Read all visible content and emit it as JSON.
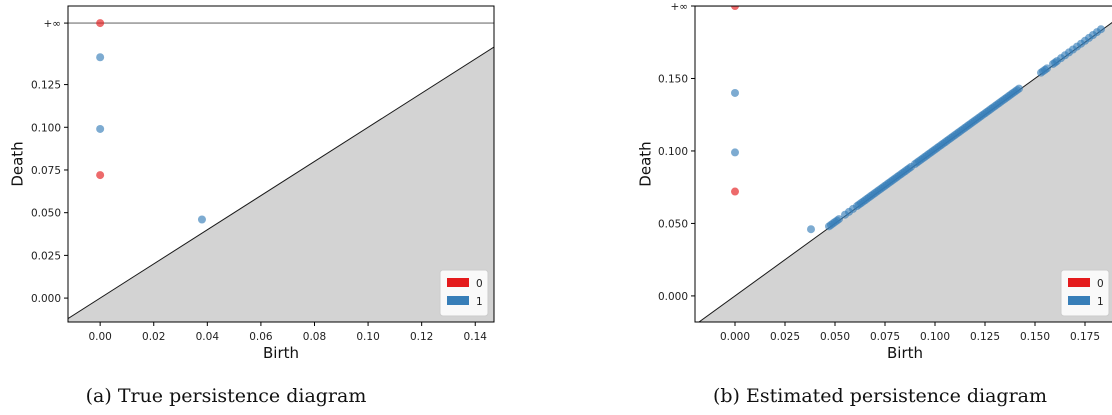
{
  "chart_data": [
    {
      "id": "a",
      "type": "scatter",
      "title": "",
      "caption": "(a) True persistence diagram",
      "xlabel": "Birth",
      "ylabel": "Death",
      "xlim": [
        -0.012,
        0.147
      ],
      "ylim": [
        -0.014,
        0.171
      ],
      "infinity_level": 0.161,
      "infinity_label": "+∞",
      "xticks": [
        {
          "value": 0.0,
          "label": "0.00"
        },
        {
          "value": 0.02,
          "label": "0.02"
        },
        {
          "value": 0.04,
          "label": "0.04"
        },
        {
          "value": 0.06,
          "label": "0.06"
        },
        {
          "value": 0.08,
          "label": "0.08"
        },
        {
          "value": 0.1,
          "label": "0.10"
        },
        {
          "value": 0.12,
          "label": "0.12"
        },
        {
          "value": 0.14,
          "label": "0.14"
        }
      ],
      "yticks": [
        {
          "value": 0.0,
          "label": "0.000"
        },
        {
          "value": 0.025,
          "label": "0.025"
        },
        {
          "value": 0.05,
          "label": "0.050"
        },
        {
          "value": 0.075,
          "label": "0.075"
        },
        {
          "value": 0.1,
          "label": "0.100"
        },
        {
          "value": 0.125,
          "label": "0.125"
        }
      ],
      "grid": false,
      "legend_position": "bottom-right",
      "series": [
        {
          "name": "0",
          "color": "#e41a1c",
          "points": [
            [
              0.0,
              0.072
            ],
            [
              0.0,
              "+∞"
            ]
          ]
        },
        {
          "name": "1",
          "color": "#377eb8",
          "points": [
            [
              0.0,
              0.099
            ],
            [
              0.0,
              0.141
            ],
            [
              0.038,
              0.046
            ]
          ]
        }
      ]
    },
    {
      "id": "b",
      "type": "scatter",
      "title": "",
      "caption": "(b) Estimated persistence diagram",
      "xlabel": "Birth",
      "ylabel": "Death",
      "xlim": [
        -0.02,
        0.19
      ],
      "ylim": [
        -0.018,
        0.2
      ],
      "infinity_level": 0.2,
      "infinity_label": "+∞",
      "xticks": [
        {
          "value": 0.0,
          "label": "0.000"
        },
        {
          "value": 0.025,
          "label": "0.025"
        },
        {
          "value": 0.05,
          "label": "0.050"
        },
        {
          "value": 0.075,
          "label": "0.075"
        },
        {
          "value": 0.1,
          "label": "0.100"
        },
        {
          "value": 0.125,
          "label": "0.125"
        },
        {
          "value": 0.15,
          "label": "0.150"
        },
        {
          "value": 0.175,
          "label": "0.175"
        }
      ],
      "yticks": [
        {
          "value": 0.0,
          "label": "0.000"
        },
        {
          "value": 0.05,
          "label": "0.050"
        },
        {
          "value": 0.1,
          "label": "0.100"
        },
        {
          "value": 0.15,
          "label": "0.150"
        }
      ],
      "grid": false,
      "legend_position": "bottom-right",
      "series": [
        {
          "name": "0",
          "color": "#e41a1c",
          "points": [
            [
              0.0,
              0.072
            ],
            [
              0.0,
              "+∞"
            ]
          ]
        },
        {
          "name": "1",
          "color": "#377eb8",
          "points": [
            [
              0.0,
              0.099
            ],
            [
              0.0,
              0.14
            ],
            [
              0.038,
              0.046
            ],
            [
              0.047,
              0.048
            ],
            [
              0.048,
              0.049
            ],
            [
              0.049,
              0.05
            ],
            [
              0.05,
              0.051
            ],
            [
              0.051,
              0.052
            ],
            [
              0.052,
              0.053
            ],
            [
              0.055,
              0.056
            ],
            [
              0.057,
              0.058
            ],
            [
              0.059,
              0.06
            ],
            [
              0.061,
              0.062
            ],
            [
              0.062,
              0.063
            ],
            [
              0.063,
              0.064
            ],
            [
              0.064,
              0.065
            ],
            [
              0.065,
              0.066
            ],
            [
              0.066,
              0.067
            ],
            [
              0.067,
              0.068
            ],
            [
              0.068,
              0.069
            ],
            [
              0.069,
              0.07
            ],
            [
              0.07,
              0.071
            ],
            [
              0.071,
              0.072
            ],
            [
              0.072,
              0.073
            ],
            [
              0.073,
              0.074
            ],
            [
              0.074,
              0.075
            ],
            [
              0.075,
              0.076
            ],
            [
              0.076,
              0.077
            ],
            [
              0.077,
              0.078
            ],
            [
              0.078,
              0.079
            ],
            [
              0.079,
              0.08
            ],
            [
              0.08,
              0.081
            ],
            [
              0.081,
              0.082
            ],
            [
              0.082,
              0.083
            ],
            [
              0.083,
              0.084
            ],
            [
              0.084,
              0.085
            ],
            [
              0.085,
              0.086
            ],
            [
              0.086,
              0.087
            ],
            [
              0.087,
              0.088
            ],
            [
              0.088,
              0.089
            ],
            [
              0.09,
              0.091
            ],
            [
              0.091,
              0.092
            ],
            [
              0.092,
              0.093
            ],
            [
              0.093,
              0.094
            ],
            [
              0.094,
              0.095
            ],
            [
              0.095,
              0.096
            ],
            [
              0.096,
              0.097
            ],
            [
              0.097,
              0.098
            ],
            [
              0.098,
              0.099
            ],
            [
              0.099,
              0.1
            ],
            [
              0.1,
              0.101
            ],
            [
              0.101,
              0.102
            ],
            [
              0.102,
              0.103
            ],
            [
              0.103,
              0.104
            ],
            [
              0.104,
              0.105
            ],
            [
              0.105,
              0.106
            ],
            [
              0.106,
              0.107
            ],
            [
              0.107,
              0.108
            ],
            [
              0.108,
              0.109
            ],
            [
              0.109,
              0.11
            ],
            [
              0.11,
              0.111
            ],
            [
              0.111,
              0.112
            ],
            [
              0.112,
              0.113
            ],
            [
              0.113,
              0.114
            ],
            [
              0.114,
              0.115
            ],
            [
              0.115,
              0.116
            ],
            [
              0.116,
              0.117
            ],
            [
              0.117,
              0.118
            ],
            [
              0.118,
              0.119
            ],
            [
              0.119,
              0.12
            ],
            [
              0.12,
              0.121
            ],
            [
              0.121,
              0.122
            ],
            [
              0.122,
              0.123
            ],
            [
              0.123,
              0.124
            ],
            [
              0.124,
              0.125
            ],
            [
              0.125,
              0.126
            ],
            [
              0.126,
              0.127
            ],
            [
              0.127,
              0.128
            ],
            [
              0.128,
              0.129
            ],
            [
              0.129,
              0.13
            ],
            [
              0.13,
              0.131
            ],
            [
              0.131,
              0.132
            ],
            [
              0.132,
              0.133
            ],
            [
              0.133,
              0.134
            ],
            [
              0.134,
              0.135
            ],
            [
              0.135,
              0.136
            ],
            [
              0.136,
              0.137
            ],
            [
              0.137,
              0.138
            ],
            [
              0.138,
              0.139
            ],
            [
              0.139,
              0.14
            ],
            [
              0.14,
              0.141
            ],
            [
              0.141,
              0.142
            ],
            [
              0.142,
              0.143
            ],
            [
              0.153,
              0.154
            ],
            [
              0.154,
              0.155
            ],
            [
              0.155,
              0.156
            ],
            [
              0.156,
              0.157
            ],
            [
              0.159,
              0.16
            ],
            [
              0.16,
              0.161
            ],
            [
              0.161,
              0.162
            ],
            [
              0.163,
              0.164
            ],
            [
              0.165,
              0.166
            ],
            [
              0.167,
              0.168
            ],
            [
              0.169,
              0.17
            ],
            [
              0.171,
              0.172
            ],
            [
              0.173,
              0.174
            ],
            [
              0.175,
              0.176
            ],
            [
              0.177,
              0.178
            ],
            [
              0.179,
              0.18
            ],
            [
              0.181,
              0.182
            ],
            [
              0.183,
              0.184
            ]
          ]
        }
      ]
    }
  ]
}
